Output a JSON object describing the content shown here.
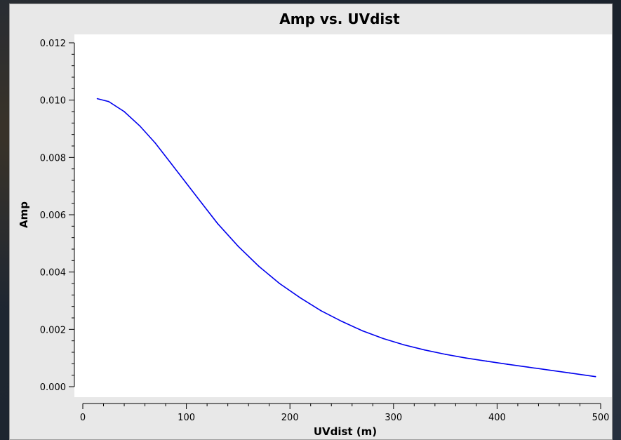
{
  "window": {
    "title": "Amp vs. UVdist"
  },
  "chart_data": {
    "type": "line",
    "title": "Amp vs. UVdist",
    "xlabel": "UVdist (m)",
    "ylabel": "Amp",
    "xlim": [
      0,
      500
    ],
    "ylim": [
      0,
      0.012
    ],
    "grid": false,
    "x_ticks": [
      "0",
      "100",
      "200",
      "300",
      "400",
      "500"
    ],
    "y_ticks": [
      "0.000",
      "0.002",
      "0.004",
      "0.006",
      "0.008",
      "0.010",
      "0.012"
    ],
    "series": [
      {
        "color": "#0000ee",
        "x": [
          14,
          25,
          40,
          55,
          70,
          85,
          100,
          115,
          130,
          150,
          170,
          190,
          210,
          230,
          250,
          270,
          290,
          310,
          330,
          350,
          370,
          390,
          410,
          430,
          450,
          470,
          495
        ],
        "y": [
          0.01005,
          0.00995,
          0.0096,
          0.0091,
          0.0085,
          0.0078,
          0.0071,
          0.0064,
          0.0057,
          0.0049,
          0.0042,
          0.0036,
          0.0031,
          0.00265,
          0.00228,
          0.00195,
          0.00168,
          0.00146,
          0.00128,
          0.00113,
          0.001,
          0.00089,
          0.00078,
          0.00068,
          0.00058,
          0.00048,
          0.00035
        ]
      }
    ]
  }
}
